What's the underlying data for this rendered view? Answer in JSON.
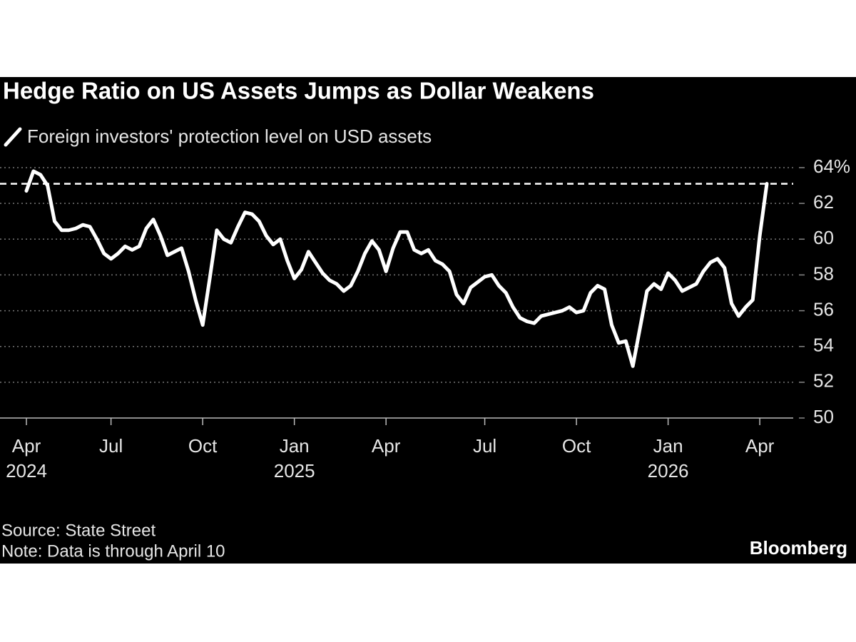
{
  "chart_data": {
    "type": "line",
    "title": "Hedge Ratio on US Assets Jumps as Dollar Weakens",
    "subtitle": "Foreign investors' protection level on USD assets",
    "source": "Source: State Street",
    "note": "Note: Data is through April 10",
    "brand": "Bloomberg",
    "categories": [
      "Apr",
      null,
      null,
      null,
      null,
      null,
      null,
      null,
      null,
      null,
      null,
      null,
      "Jul",
      null,
      null,
      null,
      null,
      null,
      null,
      null,
      null,
      null,
      null,
      null,
      null,
      "Oct",
      null,
      null,
      null,
      null,
      null,
      null,
      null,
      null,
      null,
      null,
      null,
      null,
      "Jan",
      null,
      null,
      null,
      null,
      null,
      null,
      null,
      null,
      null,
      null,
      null,
      null,
      "Apr",
      null,
      null,
      null,
      null,
      null,
      null,
      null,
      null,
      null,
      null,
      null,
      null,
      null,
      "Jul",
      null,
      null,
      null,
      null,
      null,
      null,
      null,
      null,
      null,
      null,
      null,
      null,
      "Oct",
      null,
      null,
      null,
      null,
      null,
      null,
      null,
      null,
      null,
      null,
      null,
      null,
      "Jan",
      null,
      null,
      null,
      null,
      null,
      null,
      null,
      null,
      null,
      null,
      null,
      null,
      "Apr",
      null
    ],
    "category_years": [
      "2024",
      null,
      null,
      null,
      null,
      null,
      null,
      null,
      null,
      null,
      null,
      null,
      null,
      null,
      null,
      null,
      null,
      null,
      null,
      null,
      null,
      null,
      null,
      null,
      null,
      null,
      null,
      null,
      null,
      null,
      null,
      null,
      null,
      null,
      null,
      null,
      null,
      null,
      "2025",
      null,
      null,
      null,
      null,
      null,
      null,
      null,
      null,
      null,
      null,
      null,
      null,
      null,
      null,
      null,
      null,
      null,
      null,
      null,
      null,
      null,
      null,
      null,
      null,
      null,
      null,
      null,
      null,
      null,
      null,
      null,
      null,
      null,
      null,
      null,
      null,
      null,
      null,
      null,
      null,
      null,
      null,
      null,
      null,
      null,
      null,
      null,
      null,
      null,
      null,
      null,
      null,
      "2026",
      null,
      null,
      null,
      null,
      null,
      null,
      null,
      null,
      null,
      null,
      null,
      null,
      null,
      null
    ],
    "series": [
      {
        "name": "Foreign investors' protection level on USD assets",
        "color": "#ffffff",
        "values": [
          62.7,
          63.8,
          63.6,
          63.0,
          61.0,
          60.5,
          60.5,
          60.6,
          60.8,
          60.7,
          60.0,
          59.2,
          58.9,
          59.2,
          59.6,
          59.4,
          59.6,
          60.6,
          61.1,
          60.2,
          59.1,
          59.3,
          59.5,
          58.2,
          56.6,
          55.2,
          57.8,
          60.5,
          60.0,
          59.8,
          60.7,
          61.5,
          61.4,
          61.0,
          60.2,
          59.7,
          60.0,
          58.8,
          57.8,
          58.3,
          59.3,
          58.7,
          58.1,
          57.7,
          57.5,
          57.1,
          57.4,
          58.2,
          59.2,
          59.9,
          59.4,
          58.2,
          59.5,
          60.4,
          60.4,
          59.4,
          59.2,
          59.4,
          58.8,
          58.6,
          58.2,
          56.9,
          56.4,
          57.3,
          57.6,
          57.9,
          58.0,
          57.4,
          57.0,
          56.2,
          55.6,
          55.4,
          55.3,
          55.7,
          55.8,
          55.9,
          56.0,
          56.2,
          55.9,
          56.0,
          57.0,
          57.4,
          57.2,
          55.2,
          54.2,
          54.3,
          52.9,
          55.0,
          57.1,
          57.5,
          57.2,
          58.1,
          57.7,
          57.1,
          57.3,
          57.5,
          58.2,
          58.7,
          58.9,
          58.4,
          56.4,
          55.7,
          56.2,
          56.6,
          60.2,
          63.1
        ]
      }
    ],
    "reference_line": 63.1,
    "ylim": [
      50,
      64
    ],
    "yticks": [
      50,
      52,
      54,
      56,
      58,
      60,
      62,
      {
        "value": 64,
        "label": "64%"
      }
    ],
    "grid": true
  }
}
